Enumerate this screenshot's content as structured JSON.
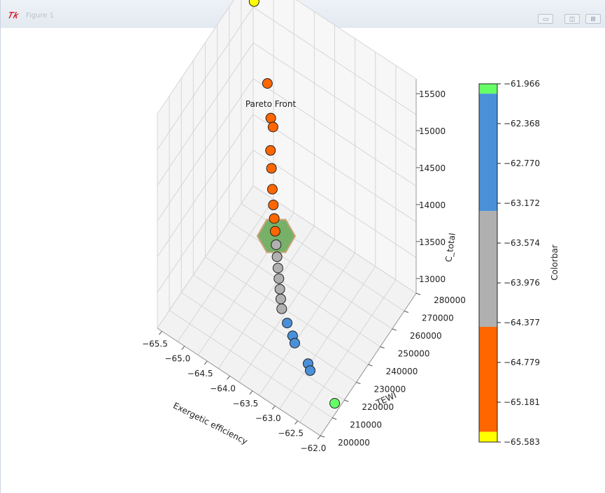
{
  "window": {
    "title": "Figure 1",
    "min_glyph": "▭",
    "max_glyph": "◫",
    "close_glyph": "⊠",
    "icon": "tk-feather-icon"
  },
  "chart_data": {
    "type": "scatter",
    "projection": "3d",
    "title": "Pareto Front",
    "xlabel": "Exergetic efficiency",
    "ylabel": "TEWI",
    "zlabel": "C_total",
    "grid": true,
    "xlim": [
      -65.6,
      -62.0
    ],
    "ylim": [
      200000,
      280000
    ],
    "zlim": [
      12800,
      15700
    ],
    "x_ticks": [
      "-65.5",
      "-65.0",
      "-64.5",
      "-64.0",
      "-63.5",
      "-63.0",
      "-62.5",
      "-62.0"
    ],
    "y_ticks": [
      "200000",
      "210000",
      "220000",
      "230000",
      "240000",
      "250000",
      "260000",
      "270000",
      "280000"
    ],
    "z_ticks": [
      "13000",
      "13500",
      "14000",
      "14500",
      "15000",
      "15500"
    ],
    "points": [
      {
        "x": -65.58,
        "y": 280000,
        "z": 15300,
        "color": "#ffff00"
      },
      {
        "x": -65.18,
        "y": 276000,
        "z": 14450,
        "color": "#ff6600"
      },
      {
        "x": -65.0,
        "y": 272000,
        "z": 14150,
        "color": "#ff6600"
      },
      {
        "x": -64.95,
        "y": 272000,
        "z": 14050,
        "color": "#ff6600"
      },
      {
        "x": -64.9,
        "y": 268000,
        "z": 13850,
        "color": "#ff6600"
      },
      {
        "x": -64.8,
        "y": 265000,
        "z": 13720,
        "color": "#ff6600"
      },
      {
        "x": -64.7,
        "y": 262000,
        "z": 13550,
        "color": "#ff6600"
      },
      {
        "x": -64.6,
        "y": 259000,
        "z": 13450,
        "color": "#ff6600"
      },
      {
        "x": -64.5,
        "y": 256000,
        "z": 13380,
        "color": "#ff6600"
      },
      {
        "x": -64.4,
        "y": 253000,
        "z": 13320,
        "color": "#ff6600"
      },
      {
        "x": -64.3,
        "y": 250000,
        "z": 13250,
        "color": "#b0b0b0"
      },
      {
        "x": -64.2,
        "y": 247000,
        "z": 13200,
        "color": "#b0b0b0"
      },
      {
        "x": -64.1,
        "y": 244000,
        "z": 13160,
        "color": "#b0b0b0"
      },
      {
        "x": -64.0,
        "y": 241000,
        "z": 13130,
        "color": "#b0b0b0"
      },
      {
        "x": -63.9,
        "y": 238000,
        "z": 13100,
        "color": "#b0b0b0"
      },
      {
        "x": -63.8,
        "y": 235000,
        "z": 13080,
        "color": "#b0b0b0"
      },
      {
        "x": -63.7,
        "y": 232000,
        "z": 13060,
        "color": "#b0b0b0"
      },
      {
        "x": -63.5,
        "y": 229000,
        "z": 13020,
        "color": "#4a90d9"
      },
      {
        "x": -63.3,
        "y": 226000,
        "z": 13000,
        "color": "#4a90d9"
      },
      {
        "x": -63.2,
        "y": 224000,
        "z": 12990,
        "color": "#4a90d9"
      },
      {
        "x": -62.8,
        "y": 220000,
        "z": 12970,
        "color": "#4a90d9"
      },
      {
        "x": -62.7,
        "y": 218000,
        "z": 12965,
        "color": "#4a90d9"
      },
      {
        "x": -62.0,
        "y": 212000,
        "z": 12950,
        "color": "#66ff66"
      }
    ],
    "highlight": {
      "shape": "hexagon",
      "color": "#6aab5a",
      "edge": "#c89b6d",
      "x": -64.35,
      "y": 252000,
      "z": 13300
    },
    "colorbar": {
      "label": "Colorbar",
      "ticks": [
        "-61.966",
        "-62.368",
        "-62.770",
        "-63.172",
        "-63.574",
        "-63.976",
        "-64.377",
        "-64.779",
        "-65.181",
        "-65.583"
      ],
      "bands": [
        {
          "from": -61.966,
          "to": -62.066,
          "color": "#66ff66"
        },
        {
          "from": -62.066,
          "to": -63.25,
          "color": "#4a90d9"
        },
        {
          "from": -63.25,
          "to": -64.42,
          "color": "#b0b0b0"
        },
        {
          "from": -64.42,
          "to": -65.48,
          "color": "#ff6600"
        },
        {
          "from": -65.48,
          "to": -65.583,
          "color": "#ffff00"
        }
      ]
    }
  }
}
